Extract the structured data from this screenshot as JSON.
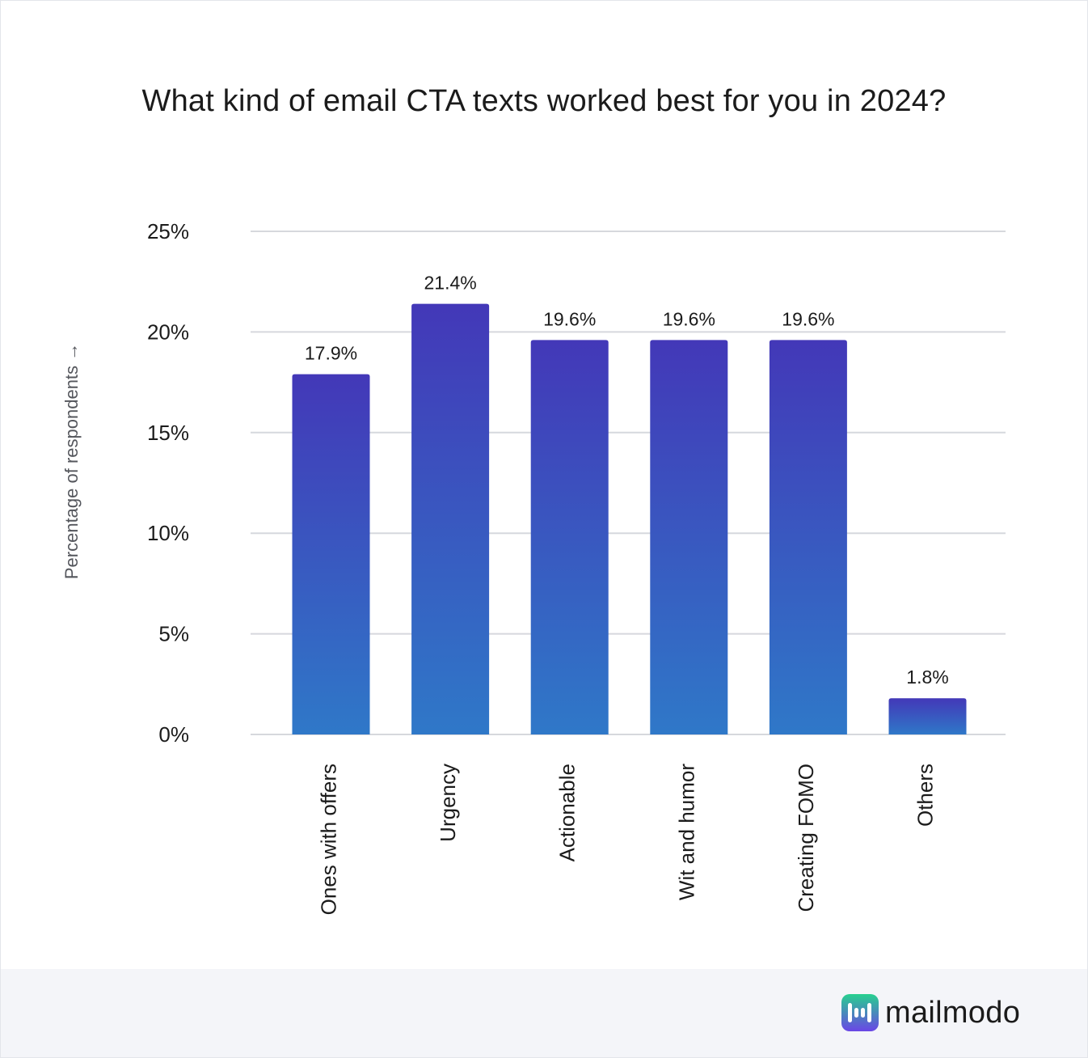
{
  "chart_data": {
    "type": "bar",
    "title": "What kind of email CTA texts worked best for you in 2024?",
    "ylabel": "Percentage of respondents →",
    "xlabel": "",
    "categories": [
      "Ones with offers",
      "Urgency",
      "Actionable",
      "Wit and humor",
      "Creating FOMO",
      "Others"
    ],
    "values": [
      17.9,
      21.4,
      19.6,
      19.6,
      19.6,
      1.8
    ],
    "data_labels": [
      "17.9%",
      "21.4%",
      "19.6%",
      "19.6%",
      "19.6%",
      "1.8%"
    ],
    "ylim": [
      0,
      25
    ],
    "yticks": [
      0,
      5,
      10,
      15,
      20,
      25
    ],
    "ytick_labels": [
      "0%",
      "5%",
      "10%",
      "15%",
      "20%",
      "25%"
    ],
    "grid": true,
    "bar_color_top": "#4338b8",
    "bar_color_bottom": "#2f78c8"
  },
  "brand": {
    "name": "mailmodo",
    "icon": "mailmodo-logo-icon",
    "icon_color_top": "#27d08f",
    "icon_color_bottom": "#6a45e6"
  }
}
